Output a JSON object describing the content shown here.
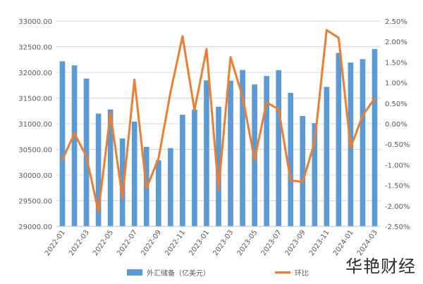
{
  "chart_data": {
    "type": "bar",
    "categories": [
      "2022-01",
      "2022-02",
      "2022-03",
      "2022-04",
      "2022-05",
      "2022-06",
      "2022-07",
      "2022-08",
      "2022-09",
      "2022-10",
      "2022-11",
      "2022-12",
      "2023-01",
      "2023-02",
      "2023-03",
      "2023-04",
      "2023-05",
      "2023-06",
      "2023-07",
      "2023-08",
      "2023-09",
      "2023-10",
      "2023-11",
      "2023-12",
      "2024-01",
      "2024-02",
      "2024-03"
    ],
    "x_tick_labels": [
      "2022-01",
      "2022-03",
      "2022-05",
      "2022-07",
      "2022-09",
      "2022-11",
      "2023-01",
      "2023-03",
      "2023-05",
      "2023-07",
      "2023-09",
      "2023-11",
      "2024-01",
      "2024-03"
    ],
    "series": [
      {
        "name": "外汇储备（亿美元）",
        "type": "bar",
        "axis": "left",
        "values": [
          32216,
          32138,
          31880,
          31197,
          31278,
          30713,
          31041,
          30549,
          30290,
          30524,
          31175,
          31277,
          31845,
          31332,
          31839,
          32048,
          31765,
          31930,
          32043,
          31601,
          31151,
          31012,
          31718,
          32380,
          32193,
          32258,
          32457
        ]
      },
      {
        "name": "环比",
        "type": "line",
        "axis": "right",
        "values": [
          -0.87,
          -0.24,
          -0.8,
          -2.14,
          0.26,
          -1.81,
          1.07,
          -1.57,
          -0.85,
          0.77,
          2.13,
          0.33,
          1.82,
          -1.61,
          1.62,
          0.66,
          -0.88,
          0.52,
          0.35,
          -1.38,
          -1.42,
          -0.45,
          2.28,
          2.09,
          -0.58,
          0.2,
          0.62
        ]
      }
    ],
    "y_left": {
      "min": 29000,
      "max": 33000,
      "step": 500,
      "tick_labels": [
        "33000.00",
        "32500.00",
        "32000.00",
        "31500.00",
        "31000.00",
        "30500.00",
        "30000.00",
        "29500.00",
        "29000.00"
      ]
    },
    "y_right": {
      "min": -2.5,
      "max": 2.5,
      "step": 0.5,
      "tick_labels": [
        "2.50%",
        "2.00%",
        "1.50%",
        "1.00%",
        "0.50%",
        "0.00%",
        "-0.50%",
        "-1.00%",
        "-1.50%",
        "-2.00%",
        "-2.50%"
      ]
    },
    "grid": true,
    "legend": {
      "position": "bottom",
      "items": [
        {
          "label": "外汇储备（亿美元）",
          "kind": "bar"
        },
        {
          "label": "环比",
          "kind": "line"
        }
      ]
    },
    "colors": {
      "bar": "#5b9bd5",
      "line": "#ed7d31",
      "grid": "#d9d9d9",
      "axis_text": "#595959"
    }
  },
  "watermark": "华艳财经"
}
